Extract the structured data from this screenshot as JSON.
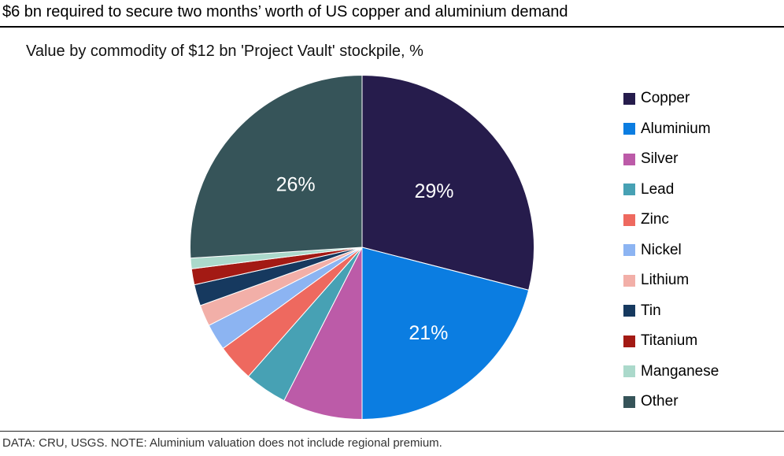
{
  "header": {
    "title": "$6 bn required to secure two months’ worth of US copper and aluminium demand"
  },
  "chart": {
    "subtitle": "Value by commodity of $12 bn 'Project Vault' stockpile, %"
  },
  "chart_data": {
    "type": "pie",
    "title": "Value by commodity of $12 bn 'Project Vault' stockpile, %",
    "units": "%",
    "start_angle_deg_from_top": 0,
    "direction": "clockwise",
    "legend_position": "right",
    "slices": [
      {
        "label": "Copper",
        "value": 29,
        "color": "#261c4c",
        "data_label": "29%"
      },
      {
        "label": "Aluminium",
        "value": 21,
        "color": "#0b7de1",
        "data_label": "21%"
      },
      {
        "label": "Silver",
        "value": 7.5,
        "color": "#bc5ba8",
        "data_label": ""
      },
      {
        "label": "Lead",
        "value": 4,
        "color": "#47a1b4",
        "data_label": ""
      },
      {
        "label": "Zinc",
        "value": 3.5,
        "color": "#ee695f",
        "data_label": ""
      },
      {
        "label": "Nickel",
        "value": 2.5,
        "color": "#8cb4f2",
        "data_label": ""
      },
      {
        "label": "Lithium",
        "value": 2,
        "color": "#f2afa8",
        "data_label": ""
      },
      {
        "label": "Tin",
        "value": 2,
        "color": "#16395f",
        "data_label": ""
      },
      {
        "label": "Titanium",
        "value": 1.5,
        "color": "#a31a14",
        "data_label": ""
      },
      {
        "label": "Manganese",
        "value": 1,
        "color": "#abd9cb",
        "data_label": ""
      },
      {
        "label": "Other",
        "value": 26,
        "color": "#365459",
        "data_label": "26%"
      }
    ]
  },
  "footer": {
    "note": "DATA: CRU, USGS. NOTE: Aluminium valuation does not include regional premium."
  }
}
